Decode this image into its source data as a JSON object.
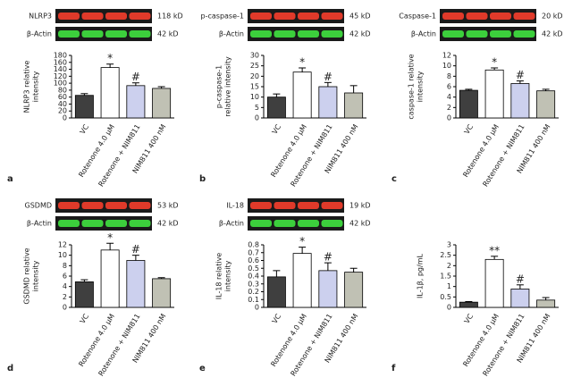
{
  "chart_data": [
    {
      "type": "bar",
      "panel": "a",
      "ylabel": [
        "NLRP3 relative",
        "intensity"
      ],
      "blot": {
        "target": "NLRP3",
        "target_kd": "118 kD",
        "control": "β-Actin",
        "control_kd": "42 kD"
      },
      "categories": [
        "VC",
        "Rotenone 4.0 μM",
        "Rotenone + NIM811",
        "NIM811 400 nM"
      ],
      "values": [
        65,
        145,
        93,
        85
      ],
      "errors": [
        5,
        10,
        8,
        5
      ],
      "colors": [
        "#3f3f3f",
        "#ffffff",
        "#ccd0ee",
        "#c0c1b4"
      ],
      "annotations": [
        null,
        "*",
        "#",
        null
      ],
      "ylim": [
        0,
        180
      ],
      "yticks": [
        0,
        20,
        40,
        60,
        80,
        100,
        120,
        140,
        160,
        180
      ]
    },
    {
      "type": "bar",
      "panel": "b",
      "ylabel": [
        "p-caspase-1",
        "relative intensity"
      ],
      "blot": {
        "target": "p-caspase-1",
        "target_kd": "45 kD",
        "control": "β-Actin",
        "control_kd": "42 kD"
      },
      "categories": [
        "VC",
        "Rotenone 4.0 μM",
        "Rotenone + NIM811",
        "NIM811 400 nM"
      ],
      "values": [
        10,
        22,
        15,
        12
      ],
      "errors": [
        1.5,
        2,
        2,
        3.5
      ],
      "colors": [
        "#3f3f3f",
        "#ffffff",
        "#ccd0ee",
        "#c0c1b4"
      ],
      "annotations": [
        null,
        "*",
        "#",
        null
      ],
      "ylim": [
        0,
        30
      ],
      "yticks": [
        0,
        5,
        10,
        15,
        20,
        25,
        30
      ]
    },
    {
      "type": "bar",
      "panel": "c",
      "ylabel": [
        "caspase-1 relative",
        "intensity"
      ],
      "blot": {
        "target": "Caspase-1",
        "target_kd": "20 kD",
        "control": "β-Actin",
        "control_kd": "42 kD"
      },
      "categories": [
        "VC",
        "Rotenone 4.0 μM",
        "Rotenone + NIM811",
        "NIM811 400 nM"
      ],
      "values": [
        5.3,
        9.2,
        6.6,
        5.2
      ],
      "errors": [
        0.2,
        0.4,
        0.5,
        0.3
      ],
      "colors": [
        "#3f3f3f",
        "#ffffff",
        "#ccd0ee",
        "#c0c1b4"
      ],
      "annotations": [
        null,
        "*",
        "#",
        null
      ],
      "ylim": [
        0,
        12
      ],
      "yticks": [
        0,
        2,
        4,
        6,
        8,
        10,
        12
      ]
    },
    {
      "type": "bar",
      "panel": "d",
      "ylabel": [
        "GSDMD relative",
        "intensity"
      ],
      "blot": {
        "target": "GSDMD",
        "target_kd": "53 kD",
        "control": "β-Actin",
        "control_kd": "42 kD"
      },
      "categories": [
        "VC",
        "Rotenone 4.0 μM",
        "Rotenone + NIM811",
        "NIM811 400 nM"
      ],
      "values": [
        4.9,
        11,
        9,
        5.5
      ],
      "errors": [
        0.4,
        1.3,
        1,
        0.2
      ],
      "colors": [
        "#3f3f3f",
        "#ffffff",
        "#ccd0ee",
        "#c0c1b4"
      ],
      "annotations": [
        null,
        "*",
        "#",
        null
      ],
      "ylim": [
        0,
        12
      ],
      "yticks": [
        0,
        2,
        4,
        6,
        8,
        10,
        12
      ]
    },
    {
      "type": "bar",
      "panel": "e",
      "ylabel": [
        "IL-18 relative",
        "intensity"
      ],
      "blot": {
        "target": "IL-18",
        "target_kd": "19 kD",
        "control": "β-Actin",
        "control_kd": "42 kD"
      },
      "categories": [
        "VC",
        "Rotenone 4.0 μM",
        "Rotenone + NIM811",
        "NIM811 400 nM"
      ],
      "values": [
        0.39,
        0.69,
        0.47,
        0.45
      ],
      "errors": [
        0.08,
        0.08,
        0.1,
        0.05
      ],
      "colors": [
        "#3f3f3f",
        "#ffffff",
        "#ccd0ee",
        "#c0c1b4"
      ],
      "annotations": [
        null,
        "*",
        "#",
        null
      ],
      "ylim": [
        0,
        0.8
      ],
      "yticks": [
        0,
        0.1,
        0.2,
        0.3,
        0.4,
        0.5,
        0.6,
        0.7,
        0.8
      ]
    },
    {
      "type": "bar",
      "panel": "f",
      "ylabel": [
        "IL-1β, pg/mL"
      ],
      "categories": [
        "VC",
        "Rotenone 4.0 μM",
        "Rotenone + NIM811",
        "NIM811 400 nM"
      ],
      "values": [
        0.25,
        2.3,
        0.88,
        0.35
      ],
      "errors": [
        0.03,
        0.15,
        0.2,
        0.12
      ],
      "colors": [
        "#3f3f3f",
        "#ffffff",
        "#ccd0ee",
        "#c0c1b4"
      ],
      "annotations": [
        null,
        "**",
        "#",
        null
      ],
      "ylim": [
        0,
        3
      ],
      "yticks": [
        0,
        0.5,
        1,
        1.5,
        2,
        2.5,
        3
      ]
    }
  ]
}
